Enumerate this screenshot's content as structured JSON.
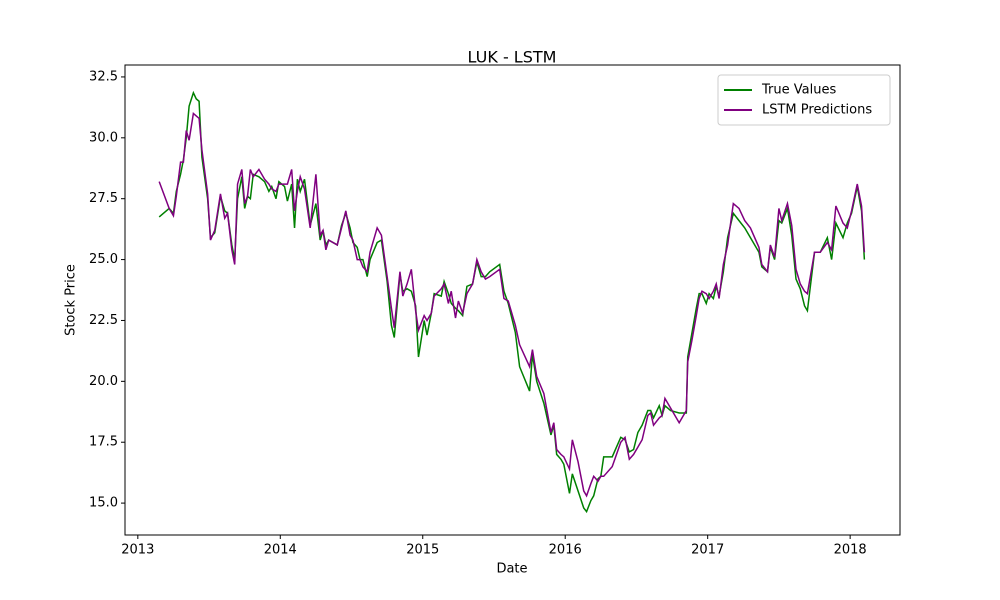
{
  "chart_data": {
    "type": "line",
    "title": "LUK - LSTM",
    "x_label": "Date",
    "y_label": "Stock Price",
    "x": [
      2013.15,
      2013.22,
      2013.25,
      2013.27,
      2013.3,
      2013.32,
      2013.34,
      2013.36,
      2013.39,
      2013.41,
      2013.43,
      2013.45,
      2013.49,
      2013.51,
      2013.54,
      2013.58,
      2013.61,
      2013.63,
      2013.66,
      2013.68,
      2013.7,
      2013.73,
      2013.75,
      2013.77,
      2013.79,
      2013.81,
      2013.85,
      2013.89,
      2013.92,
      2013.94,
      2013.97,
      2013.99,
      2014.03,
      2014.05,
      2014.08,
      2014.1,
      2014.12,
      2014.14,
      2014.17,
      2014.21,
      2014.25,
      2014.28,
      2014.3,
      2014.32,
      2014.34,
      2014.4,
      2014.43,
      2014.46,
      2014.49,
      2014.51,
      2014.54,
      2014.56,
      2014.58,
      2014.61,
      2014.63,
      2014.68,
      2014.71,
      2014.75,
      2014.78,
      2014.8,
      2014.84,
      2014.86,
      2014.89,
      2014.92,
      2014.95,
      2014.97,
      2015.01,
      2015.03,
      2015.06,
      2015.08,
      2015.13,
      2015.15,
      2015.18,
      2015.2,
      2015.23,
      2015.25,
      2015.28,
      2015.31,
      2015.35,
      2015.38,
      2015.41,
      2015.44,
      2015.47,
      2015.54,
      2015.57,
      2015.6,
      2015.65,
      2015.68,
      2015.75,
      2015.77,
      2015.8,
      2015.85,
      2015.9,
      2015.92,
      2015.94,
      2015.97,
      2015.99,
      2016.03,
      2016.05,
      2016.09,
      2016.13,
      2016.15,
      2016.18,
      2016.2,
      2016.23,
      2016.25,
      2016.27,
      2016.33,
      2016.39,
      2016.42,
      2016.45,
      2016.48,
      2016.51,
      2016.54,
      2016.58,
      2016.6,
      2016.62,
      2016.66,
      2016.68,
      2016.7,
      2016.74,
      2016.8,
      2016.85,
      2016.86,
      2016.89,
      2016.92,
      2016.94,
      2016.96,
      2016.99,
      2017.01,
      2017.04,
      2017.06,
      2017.08,
      2017.11,
      2017.14,
      2017.18,
      2017.22,
      2017.26,
      2017.3,
      2017.36,
      2017.38,
      2017.42,
      2017.44,
      2017.47,
      2017.5,
      2017.52,
      2017.56,
      2017.59,
      2017.62,
      2017.65,
      2017.68,
      2017.7,
      2017.75,
      2017.79,
      2017.84,
      2017.87,
      2017.9,
      2017.95,
      2017.98,
      2018.01,
      2018.05,
      2018.08,
      2018.1
    ],
    "series": [
      {
        "name": "True Values",
        "color": "#008000",
        "values": [
          26.75,
          27.1,
          26.9,
          27.8,
          28.5,
          29.1,
          30.0,
          31.3,
          31.85,
          31.6,
          31.5,
          29.2,
          27.5,
          25.9,
          26.1,
          27.6,
          27.0,
          26.9,
          25.6,
          25.0,
          27.5,
          28.4,
          27.1,
          27.6,
          27.5,
          28.5,
          28.4,
          28.2,
          27.8,
          28.0,
          27.5,
          28.2,
          28.0,
          27.4,
          28.1,
          26.3,
          28.3,
          27.8,
          28.3,
          26.4,
          27.3,
          25.8,
          26.2,
          25.6,
          25.8,
          25.6,
          26.4,
          26.9,
          26.3,
          25.7,
          25.5,
          25.0,
          25.0,
          24.3,
          25.0,
          25.7,
          25.8,
          24.1,
          22.3,
          21.8,
          24.4,
          23.7,
          23.8,
          23.7,
          23.1,
          21.0,
          22.5,
          21.9,
          22.8,
          23.6,
          23.5,
          24.1,
          23.6,
          23.2,
          23.0,
          22.9,
          22.7,
          23.9,
          24.0,
          24.9,
          24.3,
          24.3,
          24.5,
          24.8,
          23.7,
          23.2,
          22.0,
          20.6,
          19.6,
          21.1,
          20.0,
          19.1,
          17.8,
          18.2,
          17.0,
          16.8,
          16.6,
          15.4,
          16.2,
          15.5,
          14.8,
          14.65,
          15.1,
          15.3,
          16.0,
          16.1,
          16.9,
          16.9,
          17.7,
          17.6,
          17.1,
          17.2,
          17.9,
          18.2,
          18.8,
          18.8,
          18.5,
          19.0,
          18.6,
          19.0,
          18.8,
          18.7,
          18.7,
          21.0,
          22.0,
          23.0,
          23.6,
          23.6,
          23.2,
          23.6,
          23.4,
          23.9,
          23.5,
          24.5,
          25.9,
          26.9,
          26.6,
          26.3,
          25.9,
          25.3,
          24.7,
          24.5,
          25.5,
          25.0,
          26.6,
          26.5,
          27.1,
          26.0,
          24.2,
          23.8,
          23.1,
          22.9,
          25.3,
          25.3,
          25.9,
          25.0,
          26.5,
          25.9,
          26.5,
          26.9,
          28.0,
          27.0,
          25.0
        ]
      },
      {
        "name": "LSTM Predictions",
        "color": "#800080",
        "values": [
          28.2,
          27.1,
          26.8,
          27.6,
          29.0,
          29.0,
          30.3,
          29.9,
          31.0,
          30.9,
          30.8,
          29.5,
          27.7,
          25.8,
          26.2,
          27.7,
          26.7,
          26.9,
          25.4,
          24.8,
          28.1,
          28.7,
          27.3,
          27.6,
          28.7,
          28.4,
          28.7,
          28.3,
          28.1,
          27.9,
          27.8,
          28.1,
          28.1,
          28.1,
          28.7,
          27.0,
          27.8,
          28.4,
          27.9,
          26.3,
          28.5,
          26.0,
          26.2,
          25.4,
          25.8,
          25.6,
          26.3,
          27.0,
          26.0,
          25.8,
          25.0,
          25.0,
          24.7,
          24.5,
          25.3,
          26.3,
          26.0,
          24.3,
          23.0,
          22.2,
          24.5,
          23.5,
          24.0,
          24.6,
          22.9,
          22.1,
          22.7,
          22.5,
          22.8,
          23.5,
          23.8,
          24.0,
          23.2,
          23.7,
          22.6,
          23.3,
          22.8,
          23.6,
          24.0,
          25.0,
          24.5,
          24.2,
          24.3,
          24.6,
          23.4,
          23.3,
          22.3,
          21.5,
          20.6,
          21.3,
          20.2,
          19.5,
          17.9,
          18.3,
          17.2,
          17.0,
          16.9,
          16.4,
          17.6,
          16.7,
          15.5,
          15.3,
          15.8,
          16.1,
          15.9,
          16.1,
          16.1,
          16.5,
          17.5,
          17.7,
          16.8,
          17.0,
          17.3,
          17.6,
          18.6,
          18.7,
          18.2,
          18.5,
          18.6,
          19.3,
          18.9,
          18.3,
          18.8,
          20.8,
          21.7,
          22.7,
          23.4,
          23.7,
          23.6,
          23.4,
          23.7,
          24.0,
          23.4,
          24.8,
          25.6,
          27.3,
          27.1,
          26.6,
          26.3,
          25.5,
          24.8,
          24.5,
          25.6,
          25.1,
          27.1,
          26.6,
          27.3,
          26.4,
          24.6,
          24.0,
          23.7,
          23.6,
          25.3,
          25.3,
          25.7,
          25.4,
          27.2,
          26.5,
          26.3,
          27.0,
          28.1,
          27.2,
          25.3
        ]
      }
    ],
    "xlim": [
      2012.91,
      2018.35
    ],
    "xticks": [
      2013,
      2014,
      2015,
      2016,
      2017,
      2018
    ],
    "ylim": [
      13.69,
      32.99
    ],
    "yticks": [
      {
        "value": 15,
        "label": "15.0"
      },
      17.5,
      {
        "value": 20,
        "label": "20.0"
      },
      22.5,
      {
        "value": 25,
        "label": "25.0"
      },
      27.5,
      {
        "value": 30,
        "label": "30.0"
      },
      32.5
    ],
    "grid": false,
    "legend": "upper right"
  }
}
